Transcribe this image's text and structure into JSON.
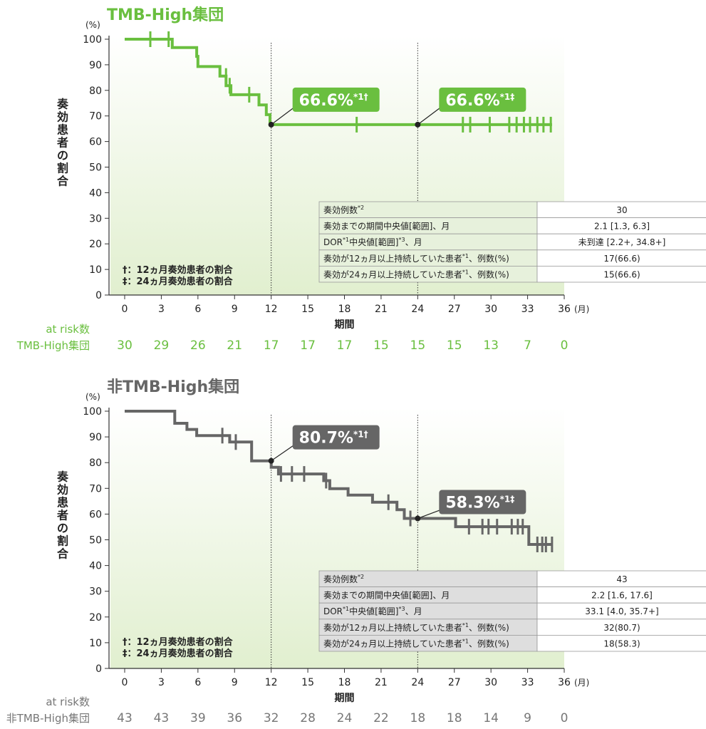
{
  "chart_data": [
    {
      "type": "line",
      "panel_id": "tmb",
      "title": "TMB-High集団",
      "color": "#6abf3f",
      "shade": "#e3f0d4",
      "ylabel": "奏効患者の割合",
      "yunit": "(%)",
      "xlabel": "期間",
      "xunit": "(月)",
      "xlim": [
        0,
        36
      ],
      "ylim": [
        0,
        100
      ],
      "xticks": [
        0,
        3,
        6,
        9,
        12,
        15,
        18,
        21,
        24,
        27,
        30,
        33,
        36
      ],
      "yticks": [
        0,
        10,
        20,
        30,
        40,
        50,
        60,
        70,
        80,
        90,
        100
      ],
      "series": [
        {
          "steps": [
            [
              0,
              100
            ],
            [
              3.9,
              100
            ],
            [
              3.9,
              96.7
            ],
            [
              5.9,
              96.7
            ],
            [
              5.9,
              93.3
            ],
            [
              6.0,
              93.3
            ],
            [
              6.0,
              89.3
            ],
            [
              7.8,
              89.3
            ],
            [
              7.8,
              85.6
            ],
            [
              8.3,
              85.6
            ],
            [
              8.3,
              81.8
            ],
            [
              8.7,
              81.8
            ],
            [
              8.7,
              78.3
            ],
            [
              11.0,
              78.3
            ],
            [
              11.0,
              74.3
            ],
            [
              11.6,
              74.3
            ],
            [
              11.6,
              70.5
            ],
            [
              11.9,
              70.5
            ],
            [
              11.9,
              66.6
            ],
            [
              35.0,
              66.6
            ]
          ],
          "censor": [
            [
              2.1,
              100
            ],
            [
              3.6,
              100
            ],
            [
              8.3,
              85.6
            ],
            [
              8.6,
              81.8
            ],
            [
              10.2,
              78.3
            ],
            [
              19.0,
              66.6
            ],
            [
              27.7,
              66.6
            ],
            [
              28.3,
              66.6
            ],
            [
              29.9,
              66.6
            ],
            [
              31.5,
              66.6
            ],
            [
              32.1,
              66.6
            ],
            [
              32.7,
              66.6
            ],
            [
              33.2,
              66.6
            ],
            [
              33.8,
              66.6
            ],
            [
              34.3,
              66.6
            ],
            [
              34.9,
              66.6
            ]
          ]
        }
      ],
      "callouts": [
        {
          "x": 12,
          "y": 66.6,
          "value": "66.6%",
          "sup": "*1†"
        },
        {
          "x": 24,
          "y": 66.6,
          "value": "66.6%",
          "sup": "*1‡"
        }
      ],
      "notes": [
        "†：12ヵ月奏効患者の割合",
        "‡：24ヵ月奏効患者の割合"
      ],
      "at_risk_header": "at risk数",
      "at_risk_label": "TMB-High集団",
      "at_risk": [
        30,
        29,
        26,
        21,
        17,
        17,
        17,
        15,
        15,
        15,
        13,
        7,
        0
      ],
      "table": [
        {
          "label": "奏効例数",
          "sup": "*2",
          "value": "30"
        },
        {
          "label": "奏効までの期間中央値[範囲]、月",
          "sup": "",
          "value": "2.1 [1.3, 6.3]"
        },
        {
          "label": "DOR",
          "sup": "*1",
          "label2": "中央値[範囲]",
          "sup2": "*3",
          "label3": "、月",
          "value": "未到達 [2.2+, 34.8+]"
        },
        {
          "label": "奏効が12ヵ月以上持続していた患者",
          "sup": "*1",
          "label2": "、例数(%)",
          "value": "17(66.6)"
        },
        {
          "label": "奏効が24ヵ月以上持続していた患者",
          "sup": "*1",
          "label2": "、例数(%)",
          "value": "15(66.6)"
        }
      ]
    },
    {
      "type": "line",
      "panel_id": "non",
      "title": "非TMB-High集団",
      "color": "#666666",
      "shade": "#e3f0d4",
      "ylabel": "奏効患者の割合",
      "yunit": "(%)",
      "xlabel": "期間",
      "xunit": "(月)",
      "xlim": [
        0,
        36
      ],
      "ylim": [
        0,
        100
      ],
      "xticks": [
        0,
        3,
        6,
        9,
        12,
        15,
        18,
        21,
        24,
        27,
        30,
        33,
        36
      ],
      "yticks": [
        0,
        10,
        20,
        30,
        40,
        50,
        60,
        70,
        80,
        90,
        100
      ],
      "series": [
        {
          "steps": [
            [
              0,
              100
            ],
            [
              4.1,
              100
            ],
            [
              4.1,
              95.3
            ],
            [
              5.1,
              95.3
            ],
            [
              5.1,
              92.9
            ],
            [
              5.9,
              92.9
            ],
            [
              5.9,
              90.5
            ],
            [
              8.6,
              90.5
            ],
            [
              8.6,
              88.0
            ],
            [
              10.4,
              88.0
            ],
            [
              10.4,
              80.7
            ],
            [
              12.0,
              80.7
            ],
            [
              12.0,
              78.2
            ],
            [
              12.6,
              78.2
            ],
            [
              12.6,
              75.6
            ],
            [
              16.3,
              75.6
            ],
            [
              16.3,
              73.0
            ],
            [
              16.8,
              73.0
            ],
            [
              16.8,
              69.9
            ],
            [
              18.3,
              69.9
            ],
            [
              18.3,
              67.4
            ],
            [
              20.3,
              67.4
            ],
            [
              20.3,
              64.6
            ],
            [
              22.3,
              64.6
            ],
            [
              22.3,
              61.7
            ],
            [
              22.9,
              61.7
            ],
            [
              22.9,
              58.3
            ],
            [
              27.1,
              58.3
            ],
            [
              27.1,
              55.1
            ],
            [
              33.1,
              55.1
            ],
            [
              33.1,
              48.2
            ],
            [
              35.0,
              48.2
            ]
          ],
          "censor": [
            [
              8.0,
              90.5
            ],
            [
              9.1,
              88.0
            ],
            [
              12.8,
              75.6
            ],
            [
              13.7,
              75.6
            ],
            [
              14.7,
              75.6
            ],
            [
              16.5,
              73.0
            ],
            [
              21.6,
              64.6
            ],
            [
              23.4,
              58.3
            ],
            [
              28.2,
              55.1
            ],
            [
              29.3,
              55.1
            ],
            [
              29.8,
              55.1
            ],
            [
              30.5,
              55.1
            ],
            [
              31.7,
              55.1
            ],
            [
              32.2,
              55.1
            ],
            [
              32.6,
              55.1
            ],
            [
              33.8,
              48.2
            ],
            [
              34.2,
              48.2
            ],
            [
              34.5,
              48.2
            ],
            [
              35.0,
              48.2
            ]
          ]
        }
      ],
      "callouts": [
        {
          "x": 12,
          "y": 80.7,
          "value": "80.7%",
          "sup": "*1†"
        },
        {
          "x": 24,
          "y": 58.3,
          "value": "58.3%",
          "sup": "*1‡"
        }
      ],
      "notes": [
        "†：12ヵ月奏効患者の割合",
        "‡：24ヵ月奏効患者の割合"
      ],
      "at_risk_header": "at risk数",
      "at_risk_label": "非TMB-High集団",
      "at_risk": [
        43,
        43,
        39,
        36,
        32,
        28,
        24,
        22,
        18,
        18,
        14,
        9,
        0
      ],
      "table": [
        {
          "label": "奏効例数",
          "sup": "*2",
          "value": "43"
        },
        {
          "label": "奏効までの期間中央値[範囲]、月",
          "sup": "",
          "value": "2.2 [1.6, 17.6]"
        },
        {
          "label": "DOR",
          "sup": "*1",
          "label2": "中央値[範囲]",
          "sup2": "*3",
          "label3": "、月",
          "value": "33.1 [4.0, 35.7+]"
        },
        {
          "label": "奏効が12ヵ月以上持続していた患者",
          "sup": "*1",
          "label2": "、例数(%)",
          "value": "32(80.7)"
        },
        {
          "label": "奏効が24ヵ月以上持続していた患者",
          "sup": "*1",
          "label2": "、例数(%)",
          "value": "18(58.3)"
        }
      ]
    }
  ]
}
